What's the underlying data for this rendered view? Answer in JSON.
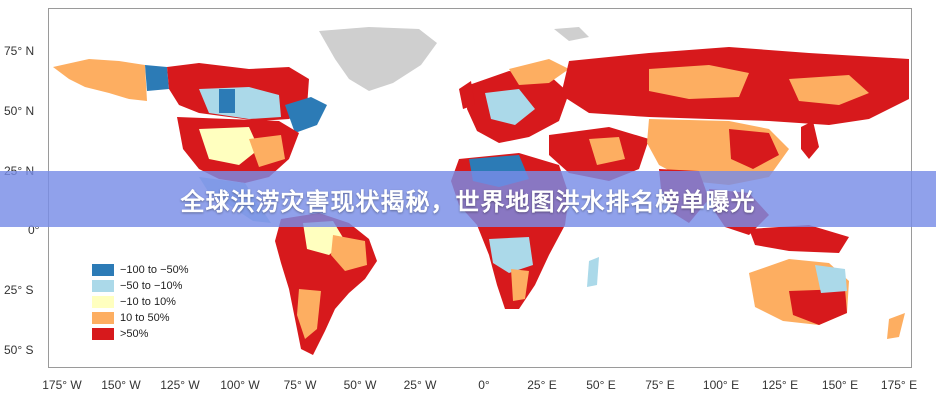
{
  "title": "全球洪涝灾害现状揭秘，世界地图洪水排名榜单曝光",
  "lat_axis": [
    "75° N",
    "50° N",
    "25° N",
    "0°",
    "25° S",
    "50° S"
  ],
  "lon_axis": [
    "175° W",
    "150° W",
    "125° W",
    "100° W",
    "75° W",
    "50° W",
    "25° W",
    "0°",
    "25° E",
    "50° E",
    "75° E",
    "100° E",
    "125° E",
    "150° E",
    "175° E"
  ],
  "legend": [
    {
      "label": "−100 to −50%",
      "color": "#2c7bb6"
    },
    {
      "label": "−50 to −10%",
      "color": "#abd9e9"
    },
    {
      "label": "−10 to 10%",
      "color": "#ffffbf"
    },
    {
      "label": "10 to 50%",
      "color": "#fdae61"
    },
    {
      "label": ">50%",
      "color": "#d7191c"
    }
  ],
  "colors": {
    "no_data": "#cfcfcf",
    "banner": "#7b8fe6"
  }
}
